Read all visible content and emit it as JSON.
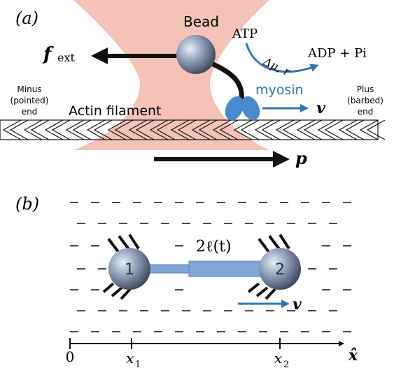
{
  "panel_a": {
    "label": "(a)",
    "bead": "Bead",
    "force": {
      "symbol": "f",
      "subscript": "ext"
    },
    "atp": "ATP",
    "reaction": "Δμ, r",
    "products": "ADP + Pi",
    "motor": "myosin",
    "velocity": "v",
    "minus_end": [
      "Minus",
      "(pointed)",
      "end"
    ],
    "plus_end": [
      "Plus",
      "(barbed)",
      "end"
    ],
    "filament": "Actin filament",
    "polarity": "p"
  },
  "panel_b": {
    "label": "(b)",
    "length": "2ℓ(t)",
    "beads": [
      "1",
      "2"
    ],
    "velocity": "v",
    "axis": {
      "origin": "0",
      "ticks": [
        {
          "symbol": "x",
          "subscript": "1"
        },
        {
          "symbol": "x",
          "subscript": "2"
        }
      ],
      "unit_vector": "x̂"
    }
  }
}
